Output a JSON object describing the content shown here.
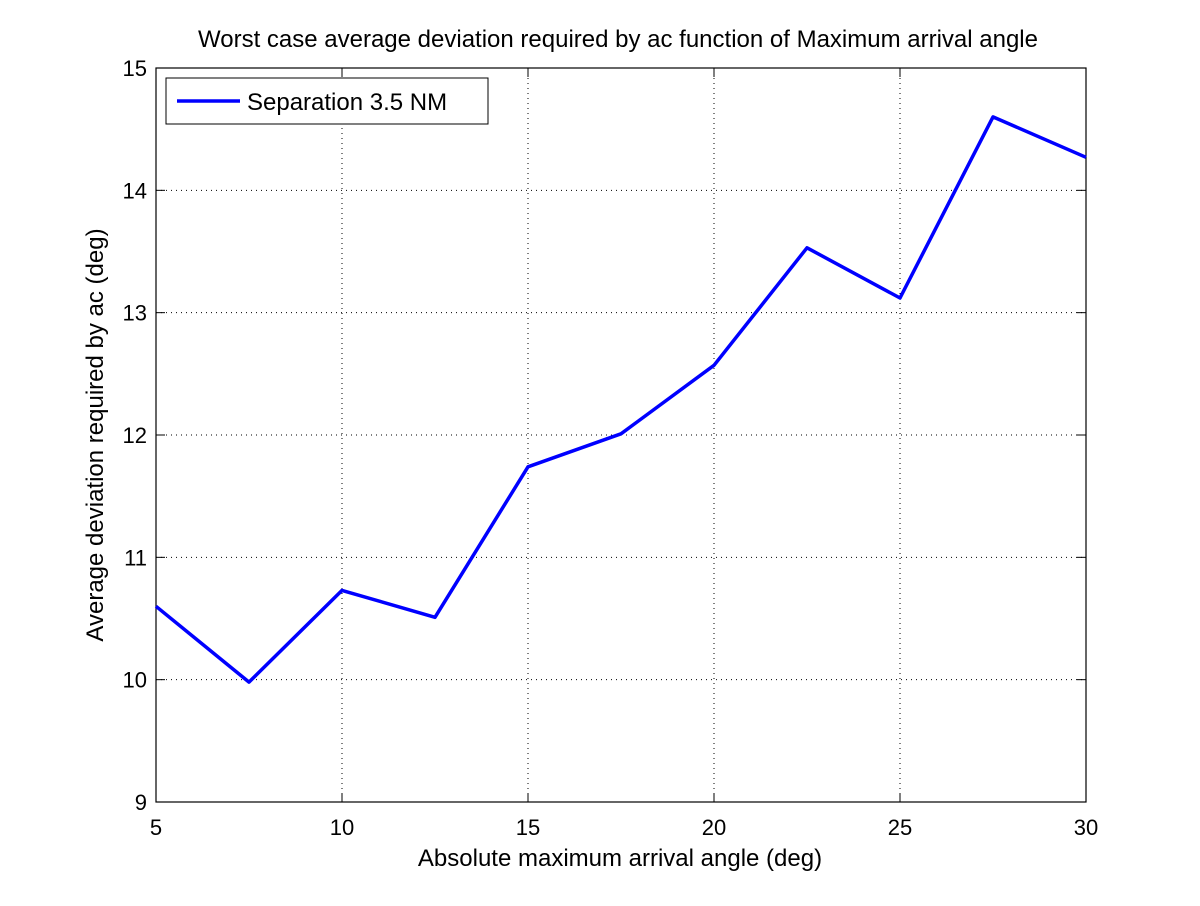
{
  "chart_data": {
    "type": "line",
    "title": "Worst case average deviation required by ac function of Maximum arrival angle",
    "xlabel": "Absolute maximum arrival angle (deg)",
    "ylabel": "Average deviation required by ac (deg)",
    "xlim": [
      5,
      30
    ],
    "ylim": [
      9,
      15
    ],
    "xticks": [
      5,
      10,
      15,
      20,
      25,
      30
    ],
    "yticks": [
      9,
      10,
      11,
      12,
      13,
      14,
      15
    ],
    "grid": true,
    "grid_style": "dotted",
    "legend_position": "top-left",
    "series": [
      {
        "name": "Separation 3.5 NM",
        "color": "#0000ff",
        "x": [
          5,
          7.5,
          10,
          12.5,
          15,
          17.5,
          20,
          22.5,
          25,
          27.5,
          30
        ],
        "y": [
          10.6,
          9.98,
          10.73,
          10.51,
          11.74,
          12.01,
          12.57,
          13.53,
          13.12,
          14.6,
          14.27
        ]
      }
    ]
  }
}
